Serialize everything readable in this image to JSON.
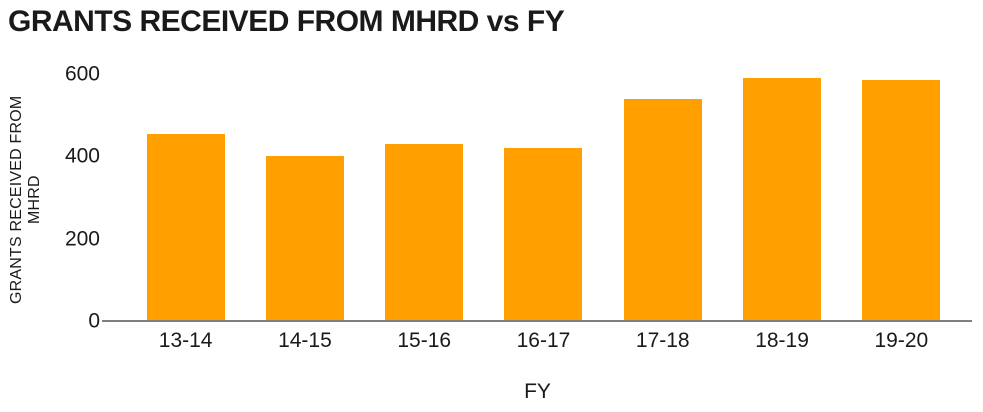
{
  "colors": {
    "bar": "#FFA000",
    "axis_line": "#7F7F7F",
    "text": "#1A1A1A",
    "background": "#FFFFFF"
  },
  "chart_data": {
    "type": "bar",
    "title": "GRANTS RECEIVED FROM MHRD vs FY",
    "xlabel": "FY",
    "ylabel": "GRANTS RECEIVED FROM MHRD",
    "categories": [
      "13-14",
      "14-15",
      "15-16",
      "16-17",
      "17-18",
      "18-19",
      "19-20"
    ],
    "values": [
      455,
      400,
      430,
      420,
      540,
      590,
      585
    ],
    "ylim": [
      0,
      600
    ],
    "yticks": [
      0,
      200,
      400,
      600
    ],
    "grid": false,
    "legend": false
  }
}
